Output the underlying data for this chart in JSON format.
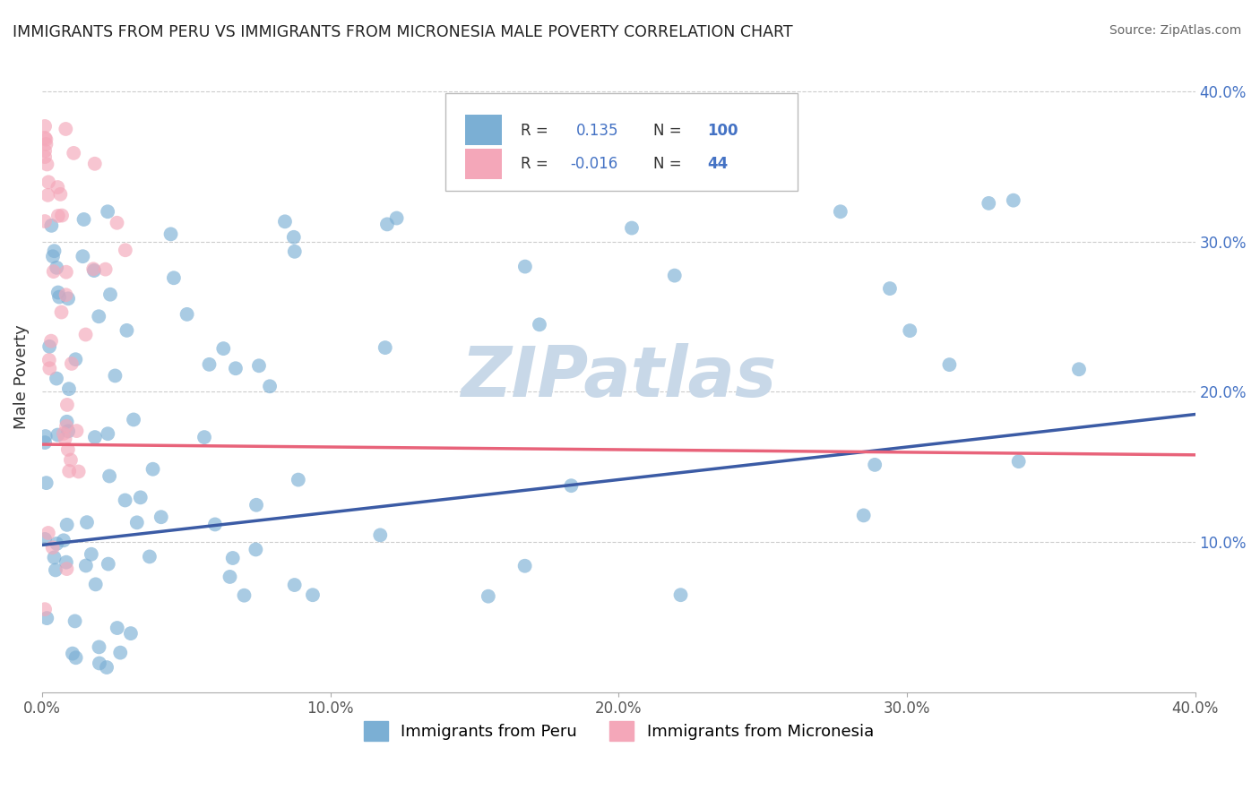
{
  "title": "IMMIGRANTS FROM PERU VS IMMIGRANTS FROM MICRONESIA MALE POVERTY CORRELATION CHART",
  "source": "Source: ZipAtlas.com",
  "ylabel": "Male Poverty",
  "xlim": [
    0.0,
    0.4
  ],
  "ylim": [
    0.0,
    0.42
  ],
  "peru_color": "#7BAFD4",
  "micronesia_color": "#F4A7B9",
  "peru_N": 100,
  "micronesia_N": 44,
  "peru_R": 0.135,
  "micronesia_R": -0.016,
  "trend_peru_color": "#3B5BA5",
  "trend_micronesia_color": "#E8637A",
  "watermark": "ZIPatlas",
  "watermark_color": "#C8D8E8",
  "legend_color": "#4472C4",
  "peru_label": "Immigrants from Peru",
  "micronesia_label": "Immigrants from Micronesia",
  "peru_trend_x0": 0.0,
  "peru_trend_y0": 0.098,
  "peru_trend_x1": 0.4,
  "peru_trend_y1": 0.185,
  "micro_trend_x0": 0.0,
  "micro_trend_y0": 0.165,
  "micro_trend_x1": 0.4,
  "micro_trend_y1": 0.158
}
